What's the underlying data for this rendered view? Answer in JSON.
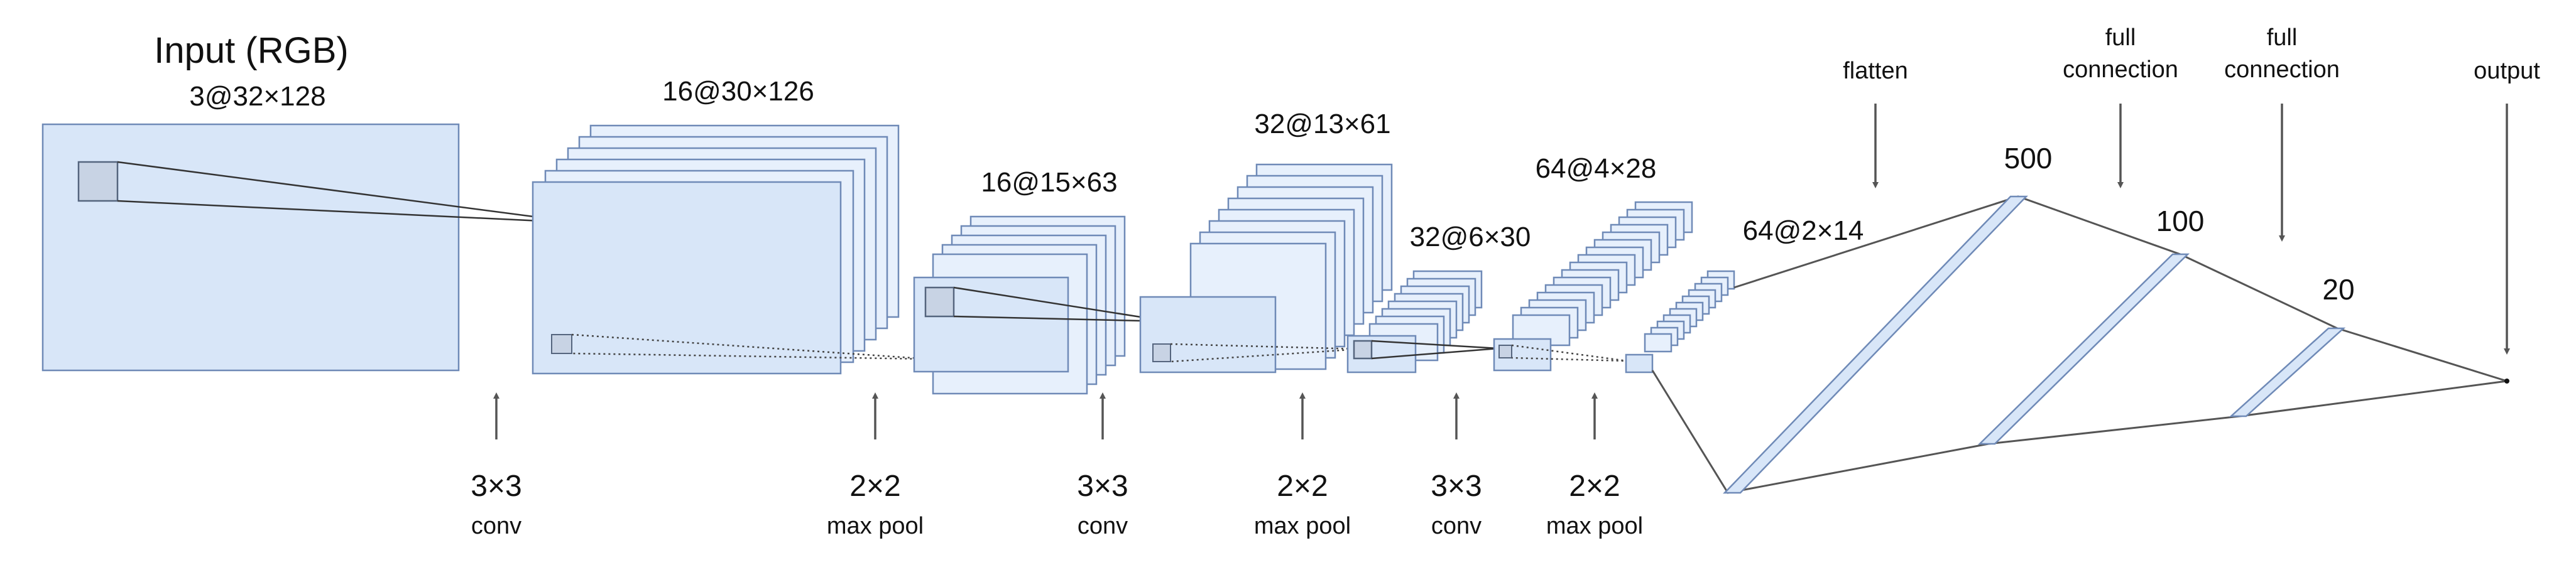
{
  "title": "Input (RGB)",
  "layers": [
    {
      "name": "input",
      "label": "3@32×128"
    },
    {
      "name": "conv1",
      "label": "16@30×126"
    },
    {
      "name": "pool1",
      "label": "16@15×63"
    },
    {
      "name": "conv2",
      "label": "32@13×61"
    },
    {
      "name": "pool2",
      "label": "32@6×30"
    },
    {
      "name": "conv3",
      "label": "64@4×28"
    },
    {
      "name": "pool3",
      "label": "64@2×14"
    }
  ],
  "operations": [
    {
      "main": "3×3",
      "sub": "conv"
    },
    {
      "main": "2×2",
      "sub": "max pool"
    },
    {
      "main": "3×3",
      "sub": "conv"
    },
    {
      "main": "2×2",
      "sub": "max pool"
    },
    {
      "main": "3×3",
      "sub": "conv"
    },
    {
      "main": "2×2",
      "sub": "max pool"
    }
  ],
  "top_labels": {
    "flatten": "flatten",
    "full_connection_1": [
      "full",
      "connection"
    ],
    "full_connection_2": [
      "full",
      "connection"
    ],
    "output": "output"
  },
  "fc_sizes": [
    "500",
    "100",
    "20"
  ],
  "colors": {
    "layer_fill": "#d8e6f8",
    "layer_stroke": "#6f8ab7",
    "kernel_fill": "#c8d3e4",
    "arrow": "#555555"
  }
}
